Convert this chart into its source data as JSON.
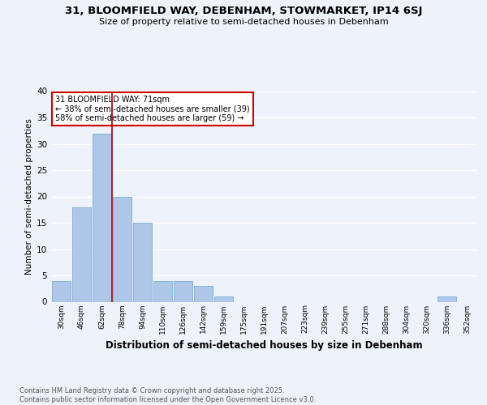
{
  "title_line1": "31, BLOOMFIELD WAY, DEBENHAM, STOWMARKET, IP14 6SJ",
  "title_line2": "Size of property relative to semi-detached houses in Debenham",
  "xlabel": "Distribution of semi-detached houses by size in Debenham",
  "ylabel": "Number of semi-detached properties",
  "categories": [
    "30sqm",
    "46sqm",
    "62sqm",
    "78sqm",
    "94sqm",
    "110sqm",
    "126sqm",
    "142sqm",
    "159sqm",
    "175sqm",
    "191sqm",
    "207sqm",
    "223sqm",
    "239sqm",
    "255sqm",
    "271sqm",
    "288sqm",
    "304sqm",
    "320sqm",
    "336sqm",
    "352sqm"
  ],
  "values": [
    4,
    18,
    32,
    20,
    15,
    4,
    4,
    3,
    1,
    0,
    0,
    0,
    0,
    0,
    0,
    0,
    0,
    0,
    0,
    1,
    0
  ],
  "bar_color": "#aec6e8",
  "bar_edge_color": "#7aafd4",
  "vline_color": "#aa0000",
  "vline_x": 2.5,
  "annotation_title": "31 BLOOMFIELD WAY: 71sqm",
  "annotation_line1": "← 38% of semi-detached houses are smaller (39)",
  "annotation_line2": "58% of semi-detached houses are larger (59) →",
  "annotation_box_color": "#ffffff",
  "annotation_box_edge": "#cc0000",
  "ylim": [
    0,
    40
  ],
  "yticks": [
    0,
    5,
    10,
    15,
    20,
    25,
    30,
    35,
    40
  ],
  "footer": "Contains HM Land Registry data © Crown copyright and database right 2025.\nContains public sector information licensed under the Open Government Licence v3.0.",
  "bg_color": "#eef2fa",
  "grid_color": "#ffffff"
}
